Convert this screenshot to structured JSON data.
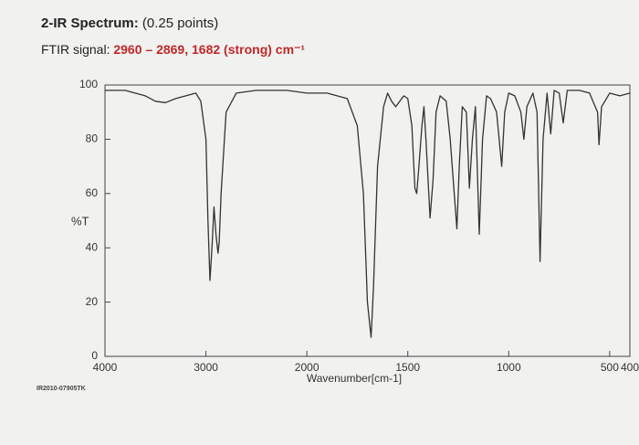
{
  "chart_data": {
    "type": "line",
    "title": "2-IR Spectrum:",
    "subtitle": "(0.25 points)",
    "annotation_label": "FTIR signal:",
    "annotation": "2960 – 2869, 1682 (strong) cm⁻¹",
    "ylabel": "%T",
    "xlabel": "Wavenumber[cm-1]",
    "code": "IR2010-07905TK",
    "xlim": [
      4000,
      400
    ],
    "xticks": [
      4000,
      3000,
      2000,
      1500,
      1000,
      500,
      400
    ],
    "x_scale_change": 2000,
    "ylim": [
      0,
      100
    ],
    "yticks": [
      0,
      20,
      40,
      60,
      80,
      100
    ],
    "grid": false,
    "series": [
      {
        "name": "Spectrum",
        "color": "#333333",
        "x": [
          4000,
          3800,
          3600,
          3500,
          3400,
          3300,
          3200,
          3100,
          3050,
          3000,
          2980,
          2960,
          2940,
          2920,
          2900,
          2880,
          2869,
          2850,
          2800,
          2700,
          2500,
          2200,
          2000,
          1900,
          1800,
          1750,
          1720,
          1700,
          1682,
          1670,
          1650,
          1620,
          1600,
          1580,
          1560,
          1520,
          1500,
          1480,
          1465,
          1456,
          1445,
          1430,
          1420,
          1410,
          1390,
          1375,
          1360,
          1340,
          1310,
          1290,
          1270,
          1257,
          1245,
          1230,
          1210,
          1195,
          1180,
          1165,
          1146,
          1130,
          1110,
          1090,
          1060,
          1035,
          1020,
          1000,
          970,
          940,
          925,
          910,
          880,
          860,
          845,
          830,
          810,
          792,
          775,
          750,
          730,
          710,
          650,
          600,
          560,
          553,
          540,
          500,
          450,
          400
        ],
        "values": [
          98,
          98,
          96,
          94,
          93.5,
          95,
          96,
          97,
          94,
          80,
          50,
          28,
          40,
          55,
          45,
          38,
          42,
          60,
          90,
          97,
          98,
          98,
          97,
          97,
          95,
          85,
          60,
          20,
          7,
          25,
          70,
          92,
          97,
          94,
          92,
          96,
          95,
          85,
          62,
          60,
          70,
          85,
          92,
          80,
          51,
          65,
          90,
          96,
          94,
          80,
          60,
          47,
          70,
          92,
          90,
          62,
          80,
          92,
          45,
          80,
          96,
          95,
          90,
          70,
          90,
          97,
          96,
          90,
          80,
          92,
          97,
          90,
          35,
          80,
          97,
          82,
          98,
          97,
          86,
          98,
          98,
          97,
          90,
          78,
          92,
          97,
          96,
          97
        ]
      }
    ]
  }
}
